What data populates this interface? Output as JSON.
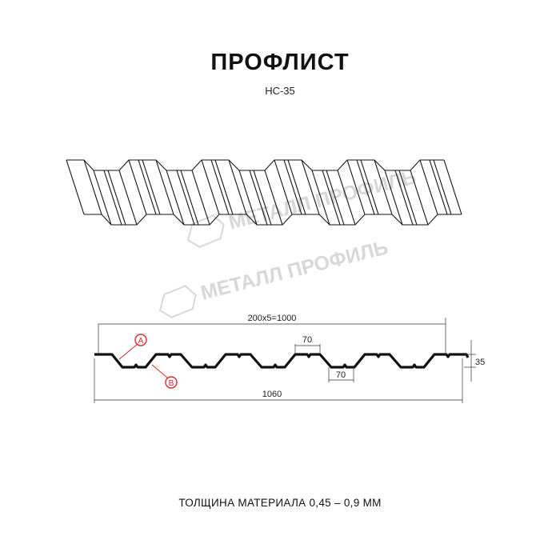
{
  "title": "ПРОФЛИСТ",
  "subtitle": "НС-35",
  "watermark": "МЕТАЛЛ ПРОФИЛЬ",
  "dimensions": {
    "pitch_total": "200x5=1000",
    "top_width": "70",
    "bottom_width": "70",
    "height": "35",
    "full_width": "1060"
  },
  "callouts": {
    "a": "A",
    "b": "B"
  },
  "colors": {
    "line": "#111111",
    "callout": "#e0262b",
    "watermark": "#d8d8d8"
  },
  "footer": "ТОЛЩИНА МАТЕРИАЛА 0,45 – 0,9 ММ"
}
